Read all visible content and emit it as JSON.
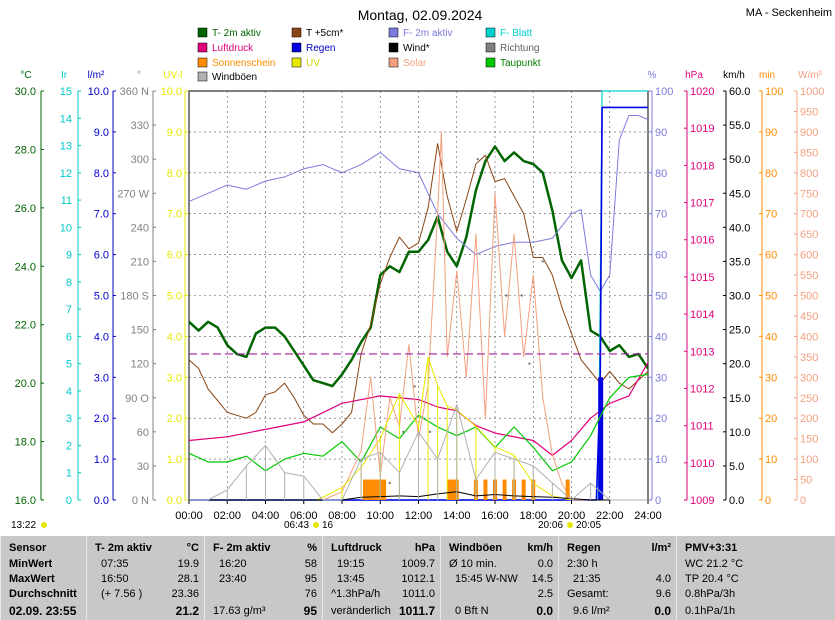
{
  "header": {
    "title": "Montag, 02.09.2024",
    "station": "MA - Seckenheim"
  },
  "legend": [
    {
      "label": "T- 2m aktiv",
      "color": "#006400"
    },
    {
      "label": "T +5cm*",
      "color": "#8b4513"
    },
    {
      "label": "F- 2m aktiv",
      "color": "#7b7bdd"
    },
    {
      "label": "F- Blatt",
      "color": "#00d0d0"
    },
    {
      "label": "Luftdruck",
      "color": "#e0007a"
    },
    {
      "label": "Regen",
      "color": "#0000e0"
    },
    {
      "label": "Wind*",
      "color": "#000000"
    },
    {
      "label": "Richtung",
      "color": "#808080"
    },
    {
      "label": "Sonnenschein",
      "color": "#ff8c00"
    },
    {
      "label": "UV",
      "color": "#e8e800"
    },
    {
      "label": "Solar",
      "color": "#f4a080"
    },
    {
      "label": "Taupunkt",
      "color": "#00c800"
    },
    {
      "label": "Windböen",
      "color": "#b0b0b0"
    }
  ],
  "axes": {
    "temp": {
      "unit": "°C",
      "color": "#006400",
      "ticks": [
        "30.0",
        "28.0",
        "26.0",
        "24.0",
        "22.0",
        "20.0",
        "18.0",
        "16.0"
      ]
    },
    "uv": {
      "unit": "Ir",
      "color": "#00c8c8",
      "ticks": [
        "15",
        "14",
        "13",
        "12",
        "11",
        "10",
        "9",
        "8",
        "7",
        "6",
        "5",
        "4",
        "3",
        "2",
        "1",
        "0"
      ]
    },
    "rain": {
      "unit": "l/m²",
      "color": "#0000c8",
      "ticks": [
        "10.0",
        "9.0",
        "8.0",
        "7.0",
        "6.0",
        "5.0",
        "4.0",
        "3.0",
        "2.0",
        "1.0",
        "0.0"
      ]
    },
    "dir": {
      "unit": "°",
      "color": "#808080",
      "ticks": [
        "360 N",
        "330",
        "300",
        "270 W",
        "240",
        "210",
        "180 S",
        "150",
        "120",
        "90 O",
        "60",
        "30",
        "0 N"
      ]
    },
    "uvi": {
      "unit": "UV-I",
      "color": "#e8e800",
      "ticks": [
        "10.0",
        "9.0",
        "8.0",
        "7.0",
        "6.0",
        "5.0",
        "4.0",
        "3.0",
        "2.0",
        "1.0",
        "0.0"
      ]
    },
    "hum": {
      "unit": "%",
      "color": "#7b7bdd",
      "ticks": [
        "100",
        "90",
        "80",
        "70",
        "60",
        "50",
        "40",
        "30",
        "20",
        "10",
        "0"
      ]
    },
    "press": {
      "unit": "hPa",
      "color": "#e0007a",
      "ticks": [
        "1020",
        "1019",
        "1018",
        "1017",
        "1016",
        "1015",
        "1014",
        "1013",
        "1012",
        "1011",
        "1010",
        "1009"
      ]
    },
    "wind": {
      "unit": "km/h",
      "color": "#000000",
      "ticks": [
        "60.0",
        "55.0",
        "50.0",
        "45.0",
        "40.0",
        "35.0",
        "30.0",
        "25.0",
        "20.0",
        "15.0",
        "10.0",
        "5.0",
        "0.0"
      ]
    },
    "sun": {
      "unit": "min",
      "color": "#ff8c00",
      "ticks": [
        "100",
        "90",
        "80",
        "70",
        "60",
        "50",
        "40",
        "30",
        "20",
        "10",
        "0"
      ]
    },
    "solar": {
      "unit": "W/m²",
      "color": "#f4a080",
      "ticks": [
        "1000",
        "950",
        "900",
        "850",
        "800",
        "750",
        "700",
        "650",
        "600",
        "550",
        "500",
        "450",
        "400",
        "350",
        "300",
        "250",
        "200",
        "150",
        "100",
        "50",
        "0"
      ]
    },
    "x": {
      "ticks": [
        "00:00",
        "02:00",
        "04:00",
        "06:00",
        "08:00",
        "10:00",
        "12:00",
        "14:00",
        "16:00",
        "18:00",
        "20:00",
        "22:00",
        "24:00"
      ]
    }
  },
  "sun_times": {
    "left": "13:22",
    "sunrise": "06:43",
    "sunrise_min": "16",
    "sunset": "20:06",
    "sunset_min": "20:05"
  },
  "chart_data": {
    "type": "line",
    "title": "Montag, 02.09.2024",
    "x_unit": "hour",
    "xlim": [
      0,
      24
    ],
    "series": [
      {
        "name": "T- 2m aktiv",
        "unit": "°C",
        "ylim": [
          16,
          30
        ],
        "x": [
          0,
          0.5,
          1,
          1.5,
          2,
          2.5,
          3,
          3.5,
          4,
          4.5,
          5,
          5.5,
          6,
          6.5,
          7,
          7.5,
          8,
          8.5,
          9,
          9.5,
          10,
          10.5,
          11,
          11.5,
          12,
          12.5,
          13,
          13.5,
          14,
          14.5,
          15,
          15.5,
          16,
          16.5,
          17,
          17.5,
          18,
          18.5,
          19,
          19.5,
          20,
          20.5,
          21,
          21.5,
          22,
          22.5,
          23,
          23.5,
          24
        ],
        "y": [
          22.1,
          21.8,
          22.1,
          21.9,
          21.3,
          21.0,
          20.9,
          21.7,
          21.9,
          21.9,
          21.6,
          21.1,
          20.6,
          20.1,
          20.0,
          19.9,
          20.3,
          20.8,
          21.4,
          21.9,
          23.7,
          24.0,
          23.8,
          24.5,
          24.5,
          24.9,
          25.7,
          24.5,
          24.0,
          25.0,
          26.6,
          27.6,
          28.1,
          27.6,
          27.9,
          27.6,
          27.5,
          27.2,
          25.9,
          24.2,
          23.6,
          24.2,
          21.8,
          21.6,
          21.1,
          21.3,
          20.9,
          21.0,
          20.5
        ]
      },
      {
        "name": "T +5cm*",
        "unit": "°C",
        "ylim": [
          16,
          30
        ],
        "x": [
          0,
          0.5,
          1,
          1.5,
          2,
          2.5,
          3,
          3.5,
          4,
          4.5,
          5,
          5.5,
          6,
          6.5,
          7,
          7.5,
          8,
          8.5,
          9,
          9.5,
          10,
          10.5,
          11,
          11.5,
          12,
          12.5,
          13,
          13.5,
          14,
          14.5,
          15,
          15.5,
          16,
          16.5,
          17,
          17.5,
          18,
          18.5,
          19,
          19.5,
          20,
          20.5,
          21,
          21.5,
          22,
          22.5,
          23,
          23.5,
          24
        ],
        "y": [
          20.8,
          20.5,
          19.8,
          19.4,
          19.0,
          18.9,
          18.8,
          19.0,
          19.6,
          19.7,
          20.0,
          19.5,
          18.9,
          18.6,
          18.6,
          18.3,
          18.6,
          19.0,
          21.0,
          22.0,
          23.4,
          24.3,
          25.0,
          24.6,
          24.8,
          26.0,
          28.2,
          26.4,
          25.2,
          26.3,
          27.5,
          27.8,
          26.9,
          27.0,
          26.4,
          25.8,
          24.3,
          24.3,
          23.7,
          22.6,
          21.7,
          20.8,
          20.4,
          20.0,
          20.4,
          20.0,
          19.8,
          20.1,
          20.4
        ]
      },
      {
        "name": "F- 2m aktiv",
        "unit": "%",
        "ylim": [
          0,
          100
        ],
        "x": [
          0,
          1,
          2,
          3,
          4,
          5,
          6,
          7,
          8,
          9,
          10,
          11,
          12,
          13,
          14,
          15,
          16,
          17,
          18,
          19,
          20,
          20.5,
          21,
          21.5,
          22,
          22.5,
          23,
          23.5,
          24
        ],
        "y": [
          73,
          75,
          77,
          76,
          78,
          79,
          81,
          82,
          80,
          82,
          85,
          81,
          80,
          70,
          64,
          60,
          62,
          63,
          63,
          64,
          70,
          71,
          55,
          51,
          55,
          88,
          94,
          94,
          93
        ]
      },
      {
        "name": "F- Blatt",
        "unit": "%",
        "ylim": [
          0,
          100
        ],
        "x": [
          0,
          21.3,
          21.4,
          21.6,
          22,
          24
        ],
        "y": [
          0,
          0,
          0,
          100,
          100,
          100
        ]
      },
      {
        "name": "Luftdruck",
        "unit": "hPa",
        "ylim": [
          1009,
          1020
        ],
        "x": [
          0,
          2,
          4,
          6,
          8,
          10,
          12,
          13,
          14,
          15,
          16,
          18,
          19,
          20,
          21,
          22,
          23,
          24
        ],
        "y": [
          1010.6,
          1010.7,
          1010.9,
          1011.1,
          1011.6,
          1011.8,
          1011.7,
          1011.5,
          1011.4,
          1011.0,
          1010.8,
          1010.6,
          1010.2,
          1010.6,
          1011.2,
          1011.6,
          1011.8,
          1012.7
        ]
      },
      {
        "name": "Regen",
        "unit": "l/m²",
        "ylim": [
          0,
          10
        ],
        "x": [
          0,
          21.3,
          21.5,
          21.6,
          22,
          24
        ],
        "y": [
          0,
          0,
          2.8,
          9.6,
          9.6,
          9.6
        ]
      },
      {
        "name": "Taupunkt",
        "unit": "°C",
        "ylim": [
          16,
          30
        ],
        "x": [
          0,
          1,
          2,
          3,
          4,
          5,
          6,
          7,
          8,
          9,
          10,
          11,
          12,
          13,
          14,
          15,
          16,
          17,
          18,
          19,
          20,
          21,
          22,
          23,
          24
        ],
        "y": [
          17.6,
          17.3,
          17.3,
          17.5,
          17.0,
          17.4,
          17.6,
          17.5,
          18.0,
          17.3,
          18.5,
          18.1,
          18.9,
          18.5,
          18.2,
          18.5,
          17.8,
          18.5,
          17.8,
          17.0,
          17.3,
          18.2,
          19.5,
          20.2,
          20.3
        ]
      },
      {
        "name": "Solar",
        "unit": "W/m²",
        "ylim": [
          0,
          1000
        ],
        "x": [
          0,
          7,
          8,
          9,
          9.5,
          10,
          10.5,
          11,
          11.5,
          12,
          12.5,
          13,
          13.2,
          13.5,
          14,
          14.5,
          15,
          15.5,
          16,
          16.5,
          17,
          17.5,
          18,
          18.5,
          19,
          19.5,
          20,
          24
        ],
        "y": [
          0,
          0,
          20,
          120,
          300,
          60,
          250,
          180,
          380,
          150,
          280,
          700,
          900,
          350,
          560,
          300,
          650,
          200,
          750,
          400,
          650,
          350,
          550,
          250,
          110,
          40,
          0,
          0
        ]
      },
      {
        "name": "Sonnenschein",
        "unit": "min",
        "ylim": [
          0,
          100
        ],
        "x": [
          9.2,
          9.4,
          9.6,
          9.8,
          10,
          10.2,
          13.6,
          13.8,
          14,
          15,
          15.5,
          16,
          16.5,
          17,
          17.5,
          18,
          19.8
        ],
        "y": [
          5,
          5,
          5,
          5,
          5,
          5,
          5,
          5,
          5,
          5,
          5,
          5,
          5,
          5,
          5,
          5,
          5
        ]
      },
      {
        "name": "UV",
        "unit": "UV-I",
        "ylim": [
          0,
          10
        ],
        "x": [
          6.7,
          8,
          9,
          10,
          11,
          12,
          12.5,
          13,
          13.5,
          14,
          15,
          16,
          17,
          18,
          19,
          20
        ],
        "y": [
          0,
          0.3,
          0.8,
          1.5,
          2.6,
          1.8,
          3.5,
          2.8,
          2.3,
          2.2,
          1.8,
          1.3,
          1.1,
          0.4,
          0.1,
          0
        ]
      },
      {
        "name": "Wind*",
        "unit": "km/h",
        "ylim": [
          0,
          60
        ],
        "x": [
          0,
          6,
          8,
          9,
          10,
          11,
          12,
          13,
          14,
          15,
          16,
          17,
          18,
          19,
          20,
          21,
          22,
          23,
          24
        ],
        "y": [
          0,
          0,
          0,
          0.4,
          0.5,
          0.6,
          0.5,
          0.9,
          1.2,
          0.6,
          0.8,
          0.6,
          0.5,
          0.4,
          0.2,
          0,
          0,
          0,
          0
        ]
      },
      {
        "name": "Windböen",
        "unit": "km/h",
        "ylim": [
          0,
          60
        ],
        "x": [
          0,
          1,
          2,
          3,
          4,
          5,
          6,
          7,
          8,
          9,
          10,
          11,
          12,
          13,
          14,
          15,
          16,
          17,
          18,
          19,
          20,
          21,
          22,
          23,
          24
        ],
        "y": [
          0,
          0,
          1.5,
          5,
          8,
          4,
          3.5,
          0,
          0,
          6,
          7,
          4,
          10,
          6,
          14,
          3,
          7,
          6,
          5,
          2.5,
          0,
          2.5,
          0,
          0,
          0
        ]
      }
    ],
    "richtung_points_deg": [
      {
        "x": 10.5,
        "y": 15
      },
      {
        "x": 11.2,
        "y": 60
      },
      {
        "x": 11.8,
        "y": 100
      },
      {
        "x": 12.6,
        "y": 60
      },
      {
        "x": 15.1,
        "y": 300
      },
      {
        "x": 16.6,
        "y": 180
      },
      {
        "x": 17.4,
        "y": 180
      },
      {
        "x": 17.8,
        "y": 120
      },
      {
        "x": 18.5,
        "y": 210
      }
    ],
    "reference_line": {
      "label": "Taupunkt-Referenz",
      "value": 21.0,
      "unit": "°C",
      "style": "dashed",
      "color": "#a020a0"
    }
  },
  "stats": {
    "col0": {
      "title": "Sensor",
      "rows": [
        "MinWert",
        "MaxWert",
        "Durchschnitt"
      ],
      "date": "02.09. 23:55"
    },
    "col1": {
      "title": "T- 2m aktiv",
      "unit": "°C",
      "rows": [
        [
          "07:35",
          "19.9"
        ],
        [
          "16:50",
          "28.1"
        ],
        [
          "(+ 7.56 )",
          "23.36"
        ]
      ],
      "current": "21.2"
    },
    "col2": {
      "title": "F- 2m aktiv",
      "unit": "%",
      "rows": [
        [
          "16:20",
          "58"
        ],
        [
          "23:40",
          "95"
        ],
        [
          "",
          "76"
        ]
      ],
      "bottom_left": "17.63 g/m³",
      "current": "95"
    },
    "col3": {
      "title": "Luftdruck",
      "unit": "hPa",
      "rows": [
        [
          "19:15",
          "1009.7"
        ],
        [
          "13:45",
          "1012.1"
        ],
        [
          "^1.3hPa/h",
          "1011.0"
        ]
      ],
      "bottom_left": "veränderlich",
      "current": "1011.7"
    },
    "col4": {
      "title": "Windböen",
      "unit": "km/h",
      "rows": [
        [
          "Ø 10 min.",
          "0.0"
        ],
        [
          "15:45  W-NW",
          "14.5"
        ],
        [
          "",
          "2.5"
        ]
      ],
      "bottom_left": "0 Bft N",
      "current": "0.0"
    },
    "col5": {
      "title": "Regen",
      "unit": "l/m²",
      "rows": [
        [
          "2:30 h",
          ""
        ],
        [
          "21:35",
          "4.0"
        ],
        [
          "Gesamt:",
          "9.6"
        ]
      ],
      "bottom_left": "9.6 l/m²",
      "current": "0.0"
    },
    "col6": {
      "title": "PMV+3:31",
      "rows": [
        "WC 21.2 °C",
        "TP 20.4 °C",
        "0.8hPa/3h",
        "0.1hPa/1h"
      ]
    }
  }
}
